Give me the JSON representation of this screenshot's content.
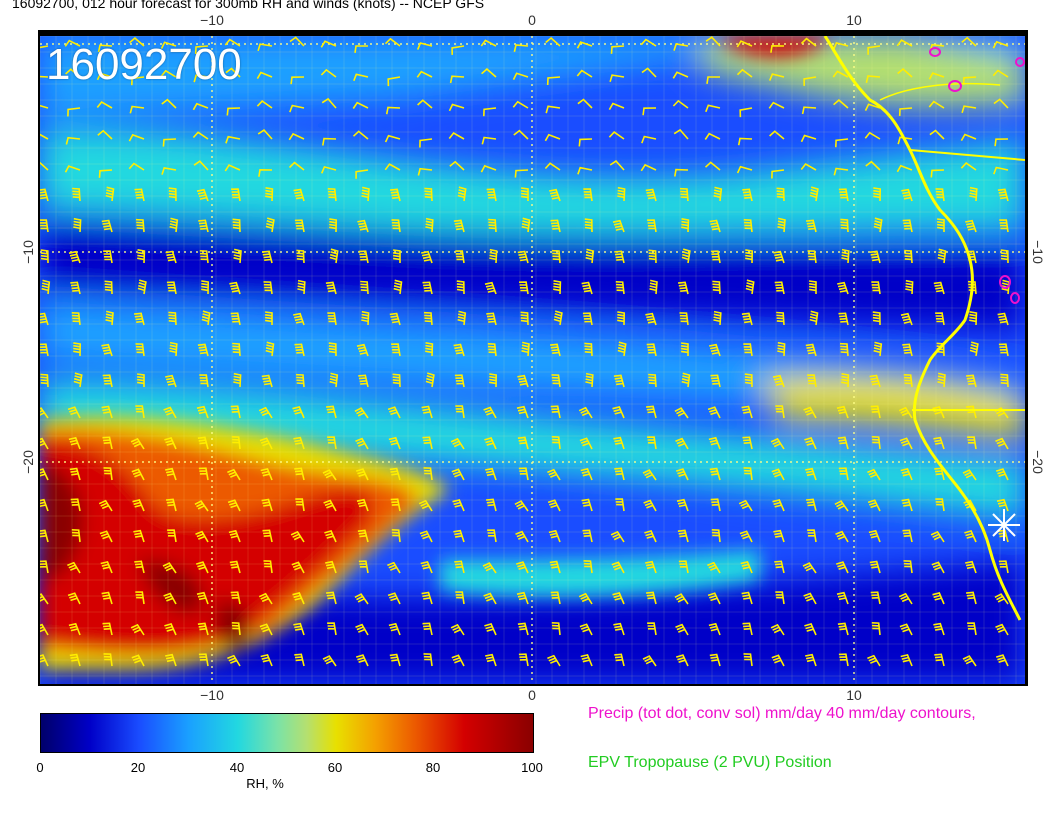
{
  "title": "16092700, 012 hour forecast for 300mb RH and winds (knots) -- NCEP GFS",
  "overlay_date": "16092700",
  "axes": {
    "top_ticks": [
      "−10",
      "0",
      "10"
    ],
    "bottom_ticks": [
      "−10",
      "0",
      "10"
    ],
    "left_ticks": [
      "−10",
      "−20"
    ],
    "right_ticks": [
      "−10",
      "−20"
    ]
  },
  "colorbar": {
    "ticks": [
      "0",
      "20",
      "40",
      "60",
      "80",
      "100"
    ],
    "label": "RH, %",
    "colors": [
      "#00006a",
      "#0000c8",
      "#1a4dff",
      "#1aa0ff",
      "#22d8e0",
      "#b4e070",
      "#e8e000",
      "#f4a000",
      "#ec5a00",
      "#d40000",
      "#8a0000"
    ]
  },
  "legend": {
    "precip": "Precip (tot dot, conv sol) mm/day 40 mm/day contours,",
    "epv": "EPV Tropopause (2 PVU) Position"
  },
  "colors": {
    "wind_barbs": "#ffee00",
    "coastline": "#ffff00",
    "precip_contours": "#ee11cc",
    "epv": "#22cc22",
    "gridlines": "#ffff88"
  }
}
